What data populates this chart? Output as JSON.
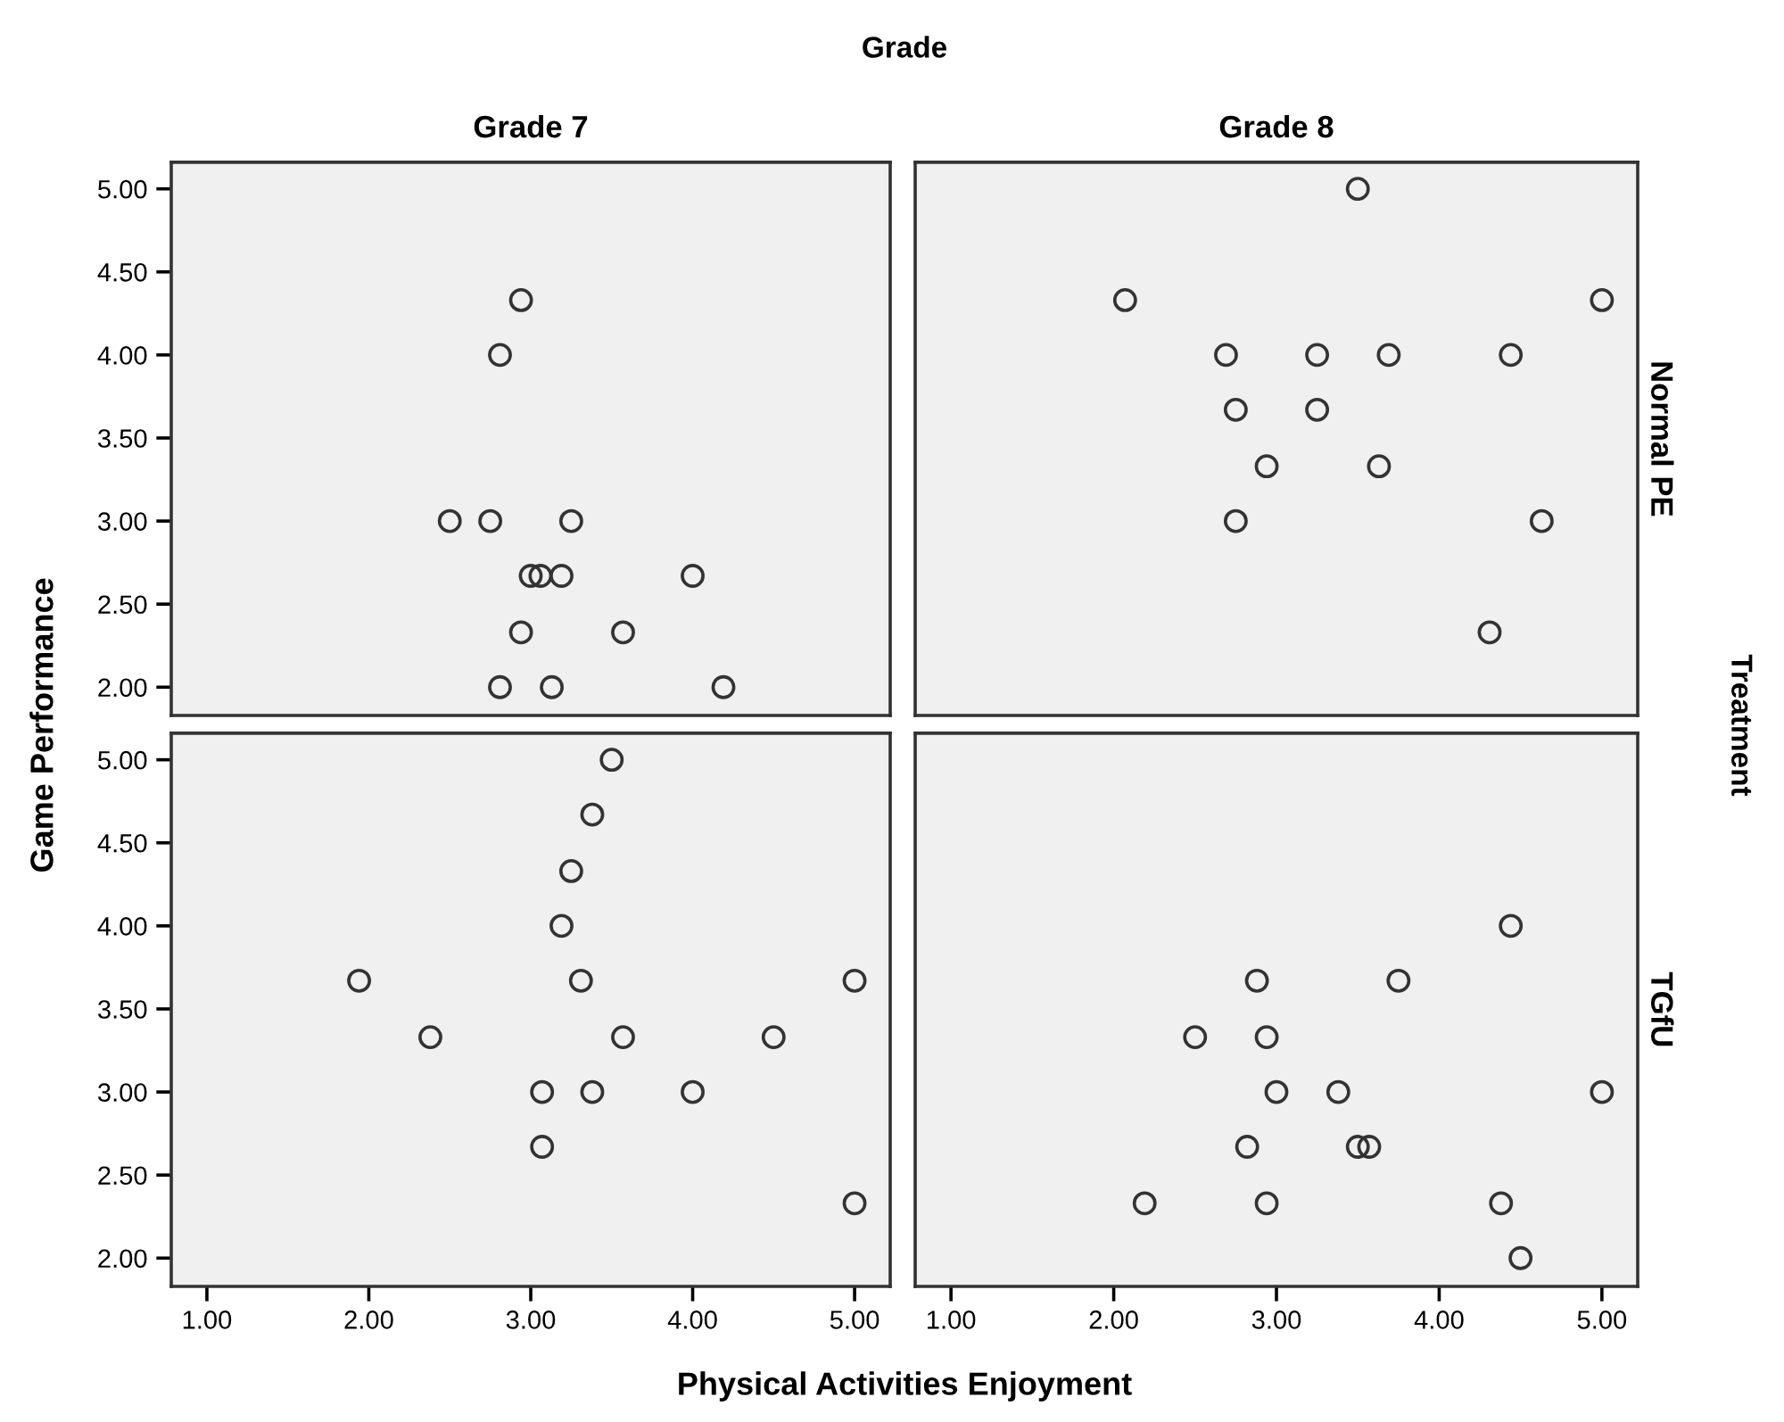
{
  "chart_data": [
    {
      "type": "scatter",
      "title": "Grade 7",
      "ylabel": "Game Performance",
      "annotations": [
        "Grade",
        "Treatment"
      ],
      "marker": "circle",
      "grid": false,
      "tick_labels": "y",
      "xlim": [
        0.78,
        5.22
      ],
      "ylim": [
        1.83,
        5.16
      ],
      "yticks": [
        {
          "value": 2,
          "label": "2.00"
        },
        {
          "value": 2.5,
          "label": "2.50"
        },
        {
          "value": 3,
          "label": "3.00"
        },
        {
          "value": 3.5,
          "label": "3.50"
        },
        {
          "value": 4,
          "label": "4.00"
        },
        {
          "value": 4.5,
          "label": "4.50"
        },
        {
          "value": 5,
          "label": "5.00"
        }
      ],
      "series": [
        {
          "color": "#333333",
          "x": [
            2.94,
            2.81,
            2.5,
            2.75,
            3.25,
            3.0,
            3.06,
            3.19,
            4.0,
            2.94,
            3.57,
            2.81,
            3.13,
            4.19
          ],
          "values": [
            4.33,
            4.0,
            3.0,
            3.0,
            3.0,
            2.67,
            2.67,
            2.67,
            2.67,
            2.33,
            2.33,
            2.0,
            2.0,
            2.0
          ]
        }
      ]
    },
    {
      "type": "scatter",
      "title": "Grade 8",
      "y2label": "Normal PE",
      "marker": "circle",
      "grid": false,
      "tick_labels": false,
      "xlim": [
        0.78,
        5.22
      ],
      "ylim": [
        1.83,
        5.16
      ],
      "series": [
        {
          "color": "#333333",
          "x": [
            3.5,
            2.07,
            5.0,
            2.69,
            3.25,
            3.69,
            4.44,
            2.75,
            3.25,
            2.94,
            3.63,
            2.75,
            4.63,
            4.31
          ],
          "values": [
            5.0,
            4.33,
            4.33,
            4.0,
            4.0,
            4.0,
            4.0,
            3.67,
            3.67,
            3.33,
            3.33,
            3.0,
            3.0,
            2.33
          ]
        }
      ]
    },
    {
      "type": "scatter",
      "xlabel": "Physical Activities Enjoyment",
      "marker": "circle",
      "grid": false,
      "xlim": [
        0.78,
        5.22
      ],
      "ylim": [
        1.83,
        5.16
      ],
      "xticks": [
        {
          "value": 1,
          "label": "1.00"
        },
        {
          "value": 2,
          "label": "2.00"
        },
        {
          "value": 3,
          "label": "3.00"
        },
        {
          "value": 4,
          "label": "4.00"
        },
        {
          "value": 5,
          "label": "5.00"
        }
      ],
      "yticks": [
        {
          "value": 2,
          "label": "2.00"
        },
        {
          "value": 2.5,
          "label": "2.50"
        },
        {
          "value": 3,
          "label": "3.00"
        },
        {
          "value": 3.5,
          "label": "3.50"
        },
        {
          "value": 4,
          "label": "4.00"
        },
        {
          "value": 4.5,
          "label": "4.50"
        },
        {
          "value": 5,
          "label": "5.00"
        }
      ],
      "series": [
        {
          "color": "#333333",
          "x": [
            3.5,
            3.38,
            3.25,
            3.19,
            1.94,
            3.31,
            5.0,
            2.38,
            3.57,
            4.5,
            3.07,
            3.38,
            4.0,
            3.07,
            5.0
          ],
          "values": [
            5.0,
            4.67,
            4.33,
            4.0,
            3.67,
            3.67,
            3.67,
            3.33,
            3.33,
            3.33,
            3.0,
            3.0,
            3.0,
            2.67,
            2.33
          ]
        }
      ]
    },
    {
      "type": "scatter",
      "y2label": "TGfU",
      "marker": "circle",
      "grid": false,
      "tick_labels": "x",
      "xlim": [
        0.78,
        5.22
      ],
      "ylim": [
        1.83,
        5.16
      ],
      "xticks": [
        {
          "value": 1,
          "label": "1.00"
        },
        {
          "value": 2,
          "label": "2.00"
        },
        {
          "value": 3,
          "label": "3.00"
        },
        {
          "value": 4,
          "label": "4.00"
        },
        {
          "value": 5,
          "label": "5.00"
        }
      ],
      "series": [
        {
          "color": "#333333",
          "x": [
            4.44,
            2.88,
            3.75,
            2.5,
            2.94,
            3.0,
            3.38,
            5.0,
            2.82,
            3.5,
            3.57,
            2.19,
            2.94,
            4.38,
            4.5
          ],
          "values": [
            4.0,
            3.67,
            3.67,
            3.33,
            3.33,
            3.0,
            3.0,
            3.0,
            2.67,
            2.67,
            2.67,
            2.33,
            2.33,
            2.33,
            2.0
          ]
        }
      ]
    }
  ]
}
